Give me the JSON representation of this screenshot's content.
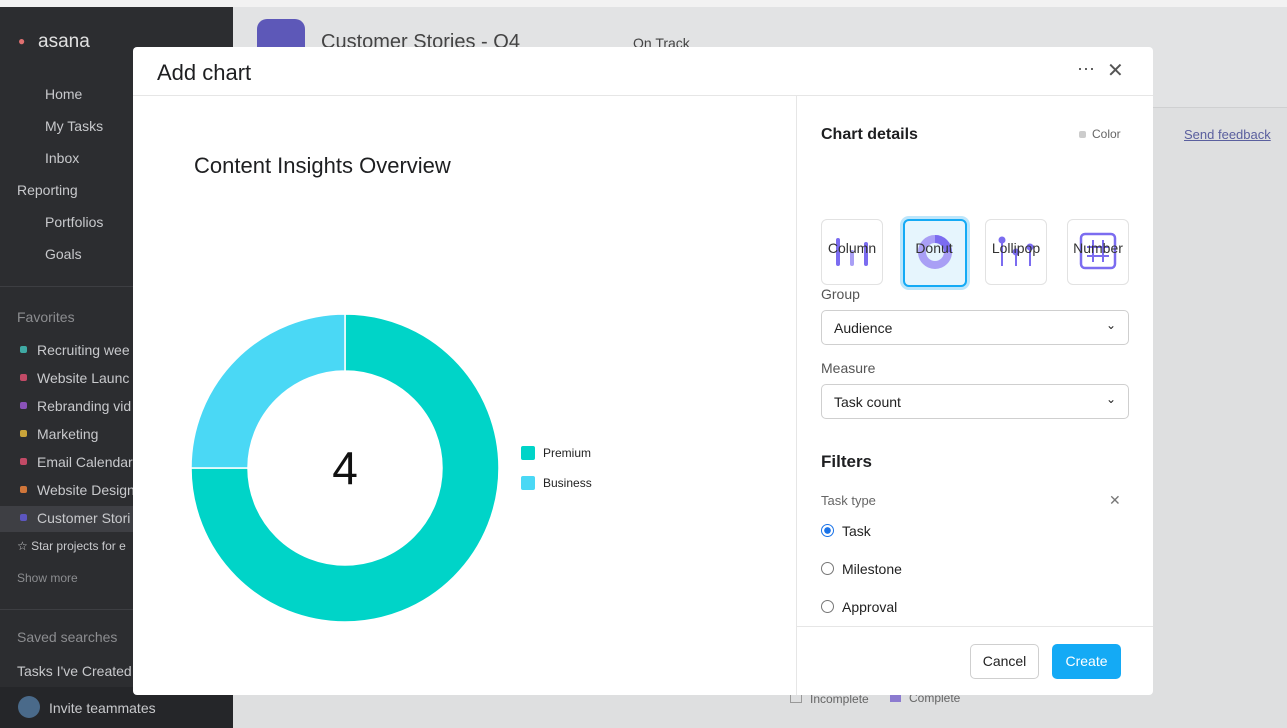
{
  "sidebar": {
    "brand": "asana",
    "nav": [
      "Home",
      "My Tasks",
      "Inbox"
    ],
    "reporting": "Reporting",
    "reporting_items": [
      "Portfolios",
      "Goals"
    ],
    "favorites_title": "Favorites",
    "favorites": [
      {
        "name": "Recruiting wee",
        "color": "#3fa9a3"
      },
      {
        "name": "Website Launc",
        "color": "#c24a66"
      },
      {
        "name": "Rebranding vid",
        "color": "#8a52b8"
      },
      {
        "name": "Marketing",
        "color": "#c9a43a"
      },
      {
        "name": "Email Calendar",
        "color": "#c24a66"
      },
      {
        "name": "Website Design",
        "color": "#d0763a"
      },
      {
        "name": "Customer Stori",
        "color": "#5c56c0"
      }
    ],
    "star_hint": "☆ Star projects for e",
    "show_more": "Show more",
    "saved_searches_title": "Saved searches",
    "saved": [
      "Tasks I've Created"
    ],
    "invite": "Invite teammates"
  },
  "header": {
    "project": "Customer Stories - Q4",
    "status": "On Track",
    "send_feedback": "Send feedback",
    "legend": [
      "Incomplete",
      "Complete"
    ]
  },
  "modal": {
    "title": "Add chart",
    "details_title": "Chart details",
    "color_toggle": "Color",
    "chart_types": [
      "Column",
      "Donut",
      "Lollipop",
      "Number"
    ],
    "selected_type": "Donut",
    "group_label": "Group",
    "group_value": "Audience",
    "measure_label": "Measure",
    "measure_value": "Task count",
    "filters_title": "Filters",
    "task_type_label": "Task type",
    "task_type_options": [
      "Task",
      "Milestone",
      "Approval"
    ],
    "selected_option": "Task",
    "cancel": "Cancel",
    "create": "Create"
  },
  "chart_data": {
    "type": "donut",
    "title": "Content Insights Overview",
    "categories": [
      "Premium",
      "Business"
    ],
    "values": [
      3,
      1
    ],
    "colors": [
      "#00d4c8",
      "#4ad8f5"
    ],
    "total": 4,
    "legend": "right"
  }
}
